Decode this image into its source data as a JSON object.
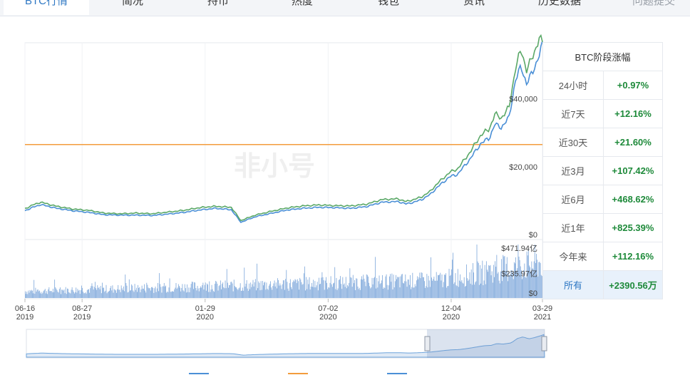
{
  "tabs": [
    {
      "label": "BTC行情",
      "active": true
    },
    {
      "label": "简况"
    },
    {
      "label": "持币"
    },
    {
      "label": "热度"
    },
    {
      "label": "钱包"
    },
    {
      "label": "资讯"
    },
    {
      "label": "历史数据"
    },
    {
      "label": "问题提交",
      "muted": true
    }
  ],
  "watermark": "非小号",
  "stats": {
    "title": "BTC阶段涨幅",
    "rows": [
      {
        "label": "24小时",
        "value": "+0.97%"
      },
      {
        "label": "近7天",
        "value": "+12.16%"
      },
      {
        "label": "近30天",
        "value": "+21.60%"
      },
      {
        "label": "近3月",
        "value": "+107.42%"
      },
      {
        "label": "近6月",
        "value": "+468.62%"
      },
      {
        "label": "近1年",
        "value": "+825.39%"
      },
      {
        "label": "今年来",
        "value": "+112.16%"
      },
      {
        "label": "所有",
        "value": "+2390.56万",
        "selected": true
      }
    ]
  },
  "chart_data": {
    "type": "line",
    "x_ticks": [
      {
        "date": "06-16",
        "year": "2019",
        "t": 0
      },
      {
        "date": "08-27",
        "year": "2019",
        "t": 72
      },
      {
        "date": "01-29",
        "year": "2020",
        "t": 227
      },
      {
        "date": "07-02",
        "year": "2020",
        "t": 382
      },
      {
        "date": "12-04",
        "year": "2020",
        "t": 537
      },
      {
        "date": "03-29",
        "year": "2021",
        "t": 652
      }
    ],
    "price_axis": {
      "ticks": [
        "$0",
        "$20,000",
        "$40,000"
      ],
      "max": 58000
    },
    "volume_axis": {
      "ticks": [
        "$0",
        "$235.97亿",
        "$471.94亿"
      ],
      "max": 520
    },
    "reference_line": {
      "value": 28000,
      "color": "#f39c3c"
    },
    "series": [
      {
        "color": "#4a8fd6",
        "t": [
          0,
          10,
          20,
          40,
          60,
          80,
          100,
          120,
          140,
          160,
          180,
          200,
          220,
          240,
          260,
          272,
          290,
          310,
          330,
          350,
          370,
          390,
          410,
          430,
          450,
          470,
          480,
          490,
          500,
          510,
          520,
          535,
          545,
          560,
          575,
          585,
          592,
          600,
          610,
          618,
          625,
          632,
          640,
          648,
          652
        ],
        "v": [
          8500,
          9500,
          10300,
          9200,
          8500,
          8000,
          7300,
          7200,
          7200,
          7100,
          7500,
          8000,
          8700,
          9200,
          8800,
          5100,
          6700,
          7700,
          8700,
          9200,
          9500,
          9400,
          9200,
          9700,
          11000,
          11200,
          10500,
          11000,
          11800,
          13200,
          15500,
          18500,
          19200,
          23500,
          28500,
          29800,
          34000,
          33000,
          36000,
          47000,
          51000,
          46000,
          49500,
          54500,
          57500
        ]
      },
      {
        "color": "#5aa867",
        "t": [
          0,
          10,
          20,
          40,
          60,
          80,
          100,
          120,
          140,
          160,
          180,
          200,
          220,
          240,
          260,
          272,
          290,
          310,
          330,
          350,
          370,
          390,
          410,
          430,
          450,
          470,
          480,
          490,
          500,
          510,
          520,
          535,
          545,
          560,
          575,
          585,
          592,
          600,
          610,
          618,
          625,
          632,
          640,
          648,
          652
        ],
        "v": [
          9100,
          10200,
          11000,
          9800,
          9000,
          8600,
          7800,
          7600,
          7800,
          7600,
          8100,
          8600,
          9400,
          9800,
          9500,
          5600,
          7200,
          8300,
          9300,
          9900,
          10200,
          10000,
          9900,
          10400,
          11800,
          12000,
          11200,
          11800,
          12600,
          14100,
          16600,
          19800,
          20800,
          25500,
          31000,
          32500,
          37000,
          35800,
          39000,
          50500,
          56000,
          50000,
          54000,
          59500,
          58000
        ]
      }
    ],
    "volume_note": "daily volume bars"
  }
}
